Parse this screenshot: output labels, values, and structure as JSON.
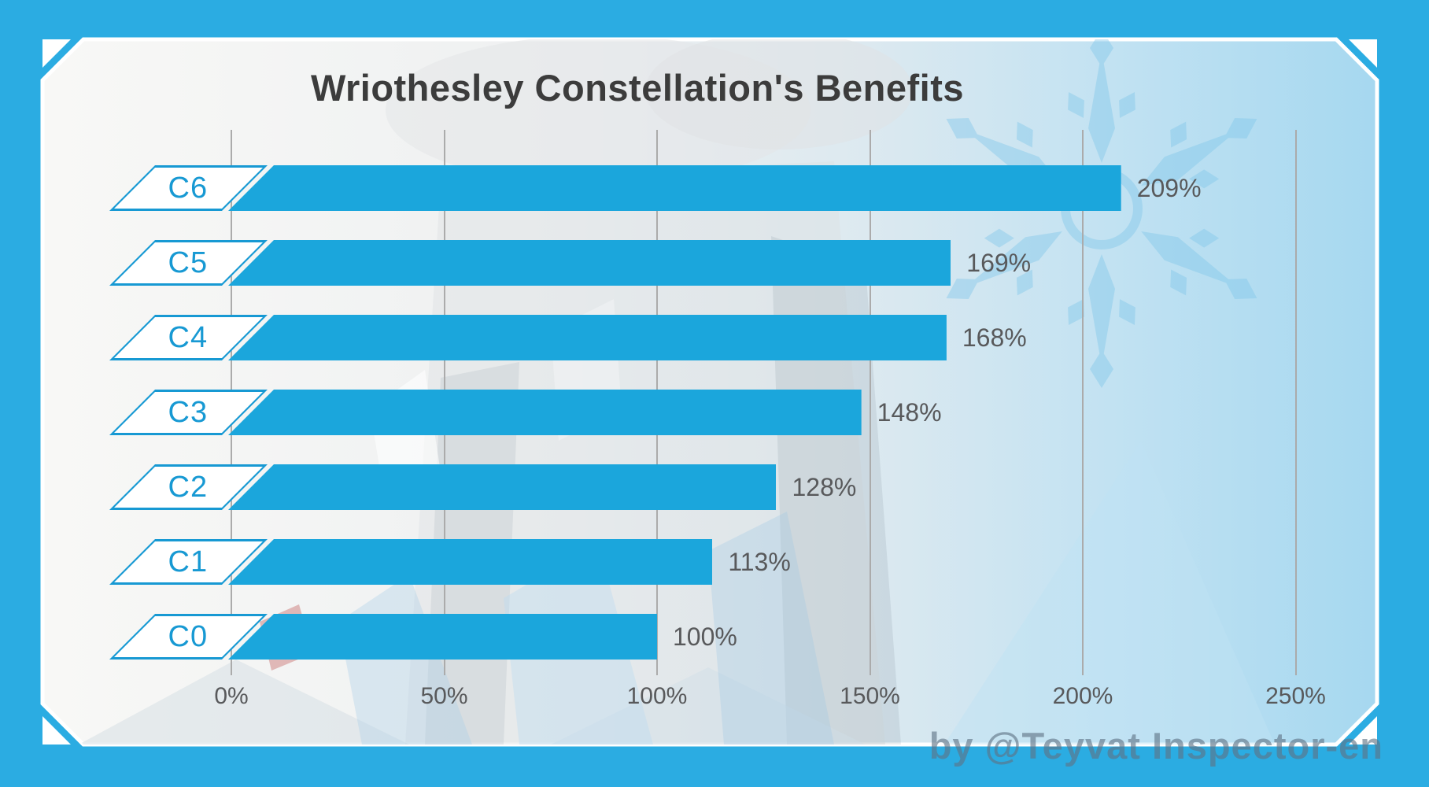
{
  "title": "Wriothesley Constellation's Benefits",
  "watermark": "by @Teyvat Inspector-en",
  "chart_data": {
    "type": "bar",
    "orientation": "horizontal",
    "title": "Wriothesley Constellation's Benefits",
    "categories": [
      "C6",
      "C5",
      "C4",
      "C3",
      "C2",
      "C1",
      "C0"
    ],
    "values": [
      209,
      169,
      168,
      148,
      128,
      113,
      100
    ],
    "value_labels": [
      "209%",
      "169%",
      "168%",
      "148%",
      "128%",
      "113%",
      "100%"
    ],
    "x_ticks": [
      "0%",
      "50%",
      "100%",
      "150%",
      "200%",
      "250%"
    ],
    "x_tick_values": [
      0,
      50,
      100,
      150,
      200,
      250
    ],
    "xlim": [
      0,
      260
    ],
    "grid": true,
    "legend": false,
    "bar_color": "#1BA6DC",
    "category_label_color": "#1799D3",
    "gridline_color": "#ABABAB",
    "text_color": "#58595B"
  },
  "frame": {
    "border_color": "#2BACE2",
    "panel_stroke_color": "#FFFFFF",
    "snowflake_color": "#7FC6E9"
  }
}
